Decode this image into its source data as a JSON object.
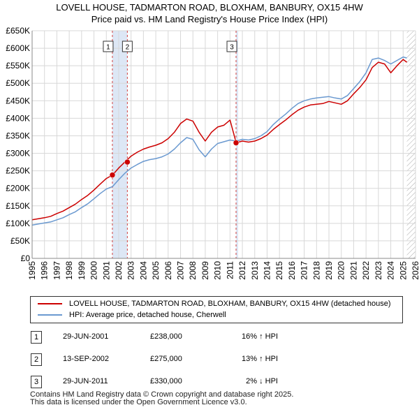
{
  "header": {
    "title_line1": "LOVELL HOUSE, TADMARTON ROAD, BLOXHAM, BANBURY, OX15 4HW",
    "title_line2": "Price paid vs. HM Land Registry's House Price Index (HPI)"
  },
  "colors": {
    "property": "#cc0000",
    "hpi": "#6a99d0",
    "sale_line": "#d04040",
    "band": "#dde7f5",
    "grid": "#d8d8d8",
    "hatch": "#aaaaaa"
  },
  "chart_data": {
    "type": "line",
    "title": "Price paid vs. HM Land Registry's House Price Index (HPI)",
    "xlim": [
      1995,
      2026
    ],
    "ylim": [
      0,
      650000
    ],
    "y_ticks": [
      0,
      50000,
      100000,
      150000,
      200000,
      250000,
      300000,
      350000,
      400000,
      450000,
      500000,
      550000,
      600000,
      650000
    ],
    "y_tick_labels": [
      "£0",
      "£50K",
      "£100K",
      "£150K",
      "£200K",
      "£250K",
      "£300K",
      "£350K",
      "£400K",
      "£450K",
      "£500K",
      "£550K",
      "£600K",
      "£650K"
    ],
    "x_ticks": [
      1995,
      1996,
      1997,
      1998,
      1999,
      2000,
      2001,
      2002,
      2003,
      2004,
      2005,
      2006,
      2007,
      2008,
      2009,
      2010,
      2011,
      2012,
      2013,
      2014,
      2015,
      2016,
      2017,
      2018,
      2019,
      2020,
      2021,
      2022,
      2023,
      2024,
      2025,
      2026
    ],
    "x_tick_labels": [
      "1995",
      "1996",
      "1997",
      "1998",
      "1999",
      "2000",
      "2001",
      "2002",
      "2003",
      "2004",
      "2005",
      "2006",
      "2007",
      "2008",
      "2009",
      "2010",
      "2011",
      "2012",
      "2013",
      "2014",
      "2015",
      "2016",
      "2017",
      "2018",
      "2019",
      "2020",
      "2021",
      "2022",
      "2023",
      "2024",
      "2025",
      "2026"
    ],
    "data_end": 2025.3,
    "series": [
      {
        "name": "LOVELL HOUSE, TADMARTON ROAD, BLOXHAM, BANBURY, OX15 4HW (detached house)",
        "color": "#cc0000",
        "x": [
          1995.0,
          1995.5,
          1996.0,
          1996.5,
          1997.0,
          1997.5,
          1998.0,
          1998.5,
          1999.0,
          1999.5,
          2000.0,
          2000.5,
          2001.0,
          2001.5,
          2002.0,
          2002.5,
          2003.0,
          2003.5,
          2004.0,
          2004.5,
          2005.0,
          2005.5,
          2006.0,
          2006.5,
          2007.0,
          2007.5,
          2008.0,
          2008.5,
          2009.0,
          2009.5,
          2010.0,
          2010.5,
          2011.0,
          2011.5,
          2012.0,
          2012.5,
          2013.0,
          2013.5,
          2014.0,
          2014.5,
          2015.0,
          2015.5,
          2016.0,
          2016.5,
          2017.0,
          2017.5,
          2018.0,
          2018.5,
          2019.0,
          2019.5,
          2020.0,
          2020.5,
          2021.0,
          2021.5,
          2022.0,
          2022.5,
          2023.0,
          2023.5,
          2024.0,
          2024.5,
          2025.0,
          2025.3
        ],
        "y": [
          110000,
          113000,
          116000,
          120000,
          128000,
          135000,
          145000,
          155000,
          168000,
          180000,
          195000,
          212000,
          228000,
          238000,
          258000,
          275000,
          292000,
          303000,
          312000,
          318000,
          323000,
          330000,
          342000,
          360000,
          385000,
          398000,
          392000,
          360000,
          335000,
          360000,
          375000,
          380000,
          395000,
          330000,
          335000,
          332000,
          335000,
          342000,
          352000,
          368000,
          382000,
          395000,
          410000,
          423000,
          432000,
          438000,
          440000,
          442000,
          448000,
          444000,
          440000,
          450000,
          470000,
          488000,
          510000,
          545000,
          560000,
          555000,
          530000,
          550000,
          568000,
          560000
        ]
      },
      {
        "name": "HPI: Average price, detached house, Cherwell",
        "color": "#6a99d0",
        "x": [
          1995.0,
          1995.5,
          1996.0,
          1996.5,
          1997.0,
          1997.5,
          1998.0,
          1998.5,
          1999.0,
          1999.5,
          2000.0,
          2000.5,
          2001.0,
          2001.5,
          2002.0,
          2002.5,
          2003.0,
          2003.5,
          2004.0,
          2004.5,
          2005.0,
          2005.5,
          2006.0,
          2006.5,
          2007.0,
          2007.5,
          2008.0,
          2008.5,
          2009.0,
          2009.5,
          2010.0,
          2010.5,
          2011.0,
          2011.5,
          2012.0,
          2012.5,
          2013.0,
          2013.5,
          2014.0,
          2014.5,
          2015.0,
          2015.5,
          2016.0,
          2016.5,
          2017.0,
          2017.5,
          2018.0,
          2018.5,
          2019.0,
          2019.5,
          2020.0,
          2020.5,
          2021.0,
          2021.5,
          2022.0,
          2022.5,
          2023.0,
          2023.5,
          2024.0,
          2024.5,
          2025.0,
          2025.3
        ],
        "y": [
          95000,
          98000,
          101000,
          104000,
          110000,
          116000,
          125000,
          133000,
          145000,
          156000,
          170000,
          185000,
          198000,
          205000,
          225000,
          243000,
          258000,
          268000,
          277000,
          282000,
          285000,
          290000,
          298000,
          312000,
          330000,
          345000,
          340000,
          310000,
          290000,
          312000,
          328000,
          333000,
          338000,
          335000,
          340000,
          338000,
          342000,
          350000,
          362000,
          382000,
          398000,
          412000,
          428000,
          442000,
          450000,
          455000,
          458000,
          460000,
          462000,
          458000,
          455000,
          465000,
          485000,
          505000,
          530000,
          568000,
          572000,
          565000,
          555000,
          565000,
          575000,
          572000
        ]
      }
    ],
    "sales": [
      {
        "label": "1",
        "x": 2001.49,
        "value": 238000
      },
      {
        "label": "2",
        "x": 2002.7,
        "value": 275000
      },
      {
        "label": "3",
        "x": 2011.49,
        "value": 330000
      }
    ]
  },
  "legend": {
    "property_label": "LOVELL HOUSE, TADMARTON ROAD, BLOXHAM, BANBURY, OX15 4HW (detached house)",
    "hpi_label": "HPI: Average price, detached house, Cherwell"
  },
  "sales_table": [
    {
      "num": "1",
      "date": "29-JUN-2001",
      "price": "£238,000",
      "hpi": "16% ↑ HPI"
    },
    {
      "num": "2",
      "date": "13-SEP-2002",
      "price": "£275,000",
      "hpi": "13% ↑ HPI"
    },
    {
      "num": "3",
      "date": "29-JUN-2011",
      "price": "£330,000",
      "hpi": "2% ↓ HPI"
    }
  ],
  "footer": {
    "line1": "Contains HM Land Registry data © Crown copyright and database right 2025.",
    "line2": "This data is licensed under the Open Government Licence v3.0."
  }
}
